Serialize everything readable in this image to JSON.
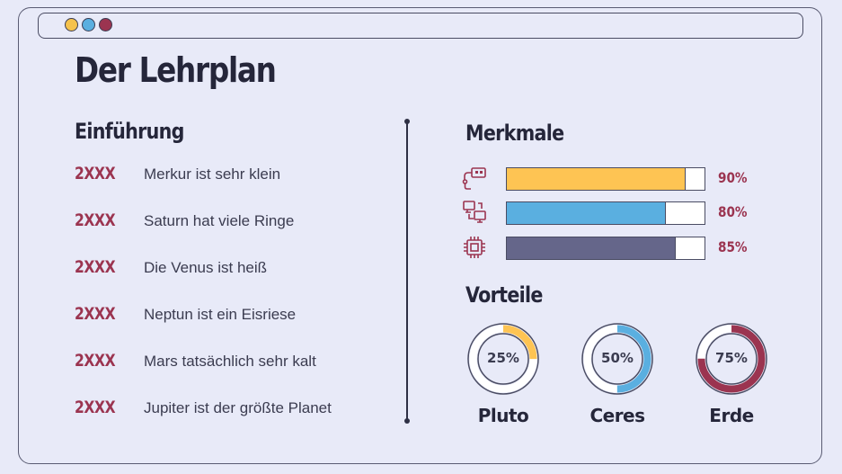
{
  "window": {
    "dots": [
      {
        "name": "yellow",
        "color": "#f5c24c"
      },
      {
        "name": "blue",
        "color": "#5aafe0"
      },
      {
        "name": "red",
        "color": "#9b3450"
      }
    ]
  },
  "title": "Der Lehrplan",
  "intro": {
    "heading": "Einführung",
    "items": [
      {
        "year": "2XXX",
        "text": "Merkur ist sehr klein"
      },
      {
        "year": "2XXX",
        "text": "Saturn hat viele Ringe"
      },
      {
        "year": "2XXX",
        "text": "Die Venus ist heiß"
      },
      {
        "year": "2XXX",
        "text": "Neptun ist ein Eisriese"
      },
      {
        "year": "2XXX",
        "text": "Mars tatsächlich sehr kalt"
      },
      {
        "year": "2XXX",
        "text": "Jupiter ist der größte Planet"
      }
    ]
  },
  "features": {
    "heading": "Merkmale",
    "bars": [
      {
        "icon": "usb-device-icon",
        "value": 90,
        "label": "90%",
        "color": "#fec453"
      },
      {
        "icon": "network-computers-icon",
        "value": 80,
        "label": "80%",
        "color": "#5aafe0"
      },
      {
        "icon": "cpu-chip-icon",
        "value": 85,
        "label": "85%",
        "color": "#65668a"
      }
    ]
  },
  "advantages": {
    "heading": "Vorteile",
    "donuts": [
      {
        "name": "Pluto",
        "value": 25,
        "label": "25%",
        "color": "#fec453"
      },
      {
        "name": "Ceres",
        "value": 50,
        "label": "50%",
        "color": "#5aafe0"
      },
      {
        "name": "Erde",
        "value": 75,
        "label": "75%",
        "color": "#9b3450"
      }
    ]
  }
}
